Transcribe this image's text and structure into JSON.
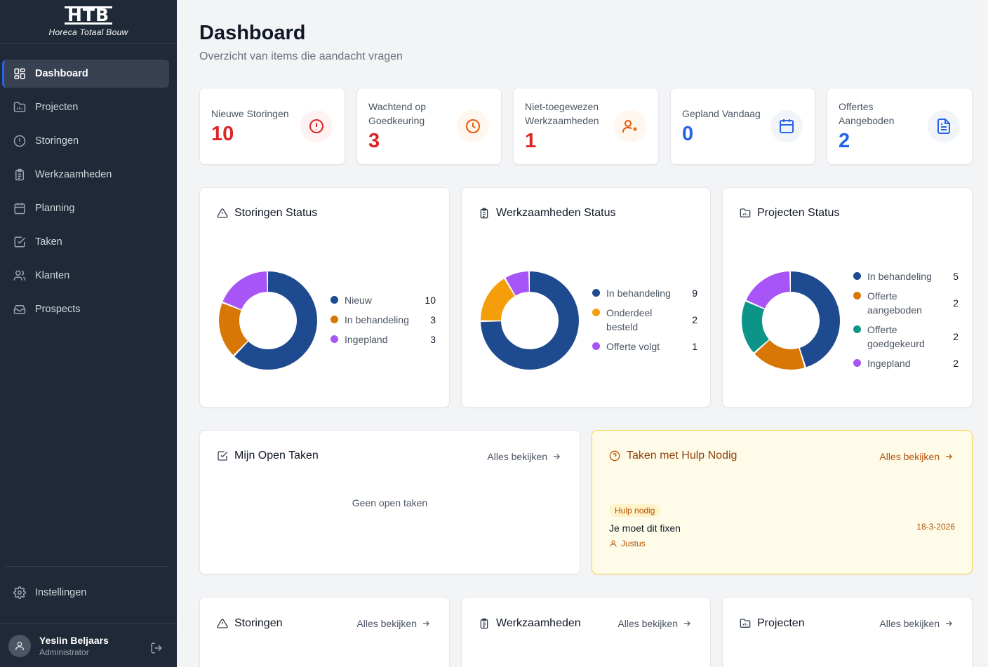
{
  "brand": {
    "logo_text": "HTB",
    "subtitle": "Horeca Totaal Bouw"
  },
  "sidebar": {
    "items": [
      {
        "label": "Dashboard",
        "icon": "dashboard-grid-icon"
      },
      {
        "label": "Projecten",
        "icon": "folder-chart-icon"
      },
      {
        "label": "Storingen",
        "icon": "alert-circle-icon"
      },
      {
        "label": "Werkzaamheden",
        "icon": "clipboard-icon"
      },
      {
        "label": "Planning",
        "icon": "calendar-icon"
      },
      {
        "label": "Taken",
        "icon": "check-square-icon"
      },
      {
        "label": "Klanten",
        "icon": "users-icon"
      },
      {
        "label": "Prospects",
        "icon": "inbox-icon"
      }
    ],
    "settings_label": "Instellingen",
    "user": {
      "name": "Yeslin Beljaars",
      "role": "Administrator"
    }
  },
  "header": {
    "title": "Dashboard",
    "subtitle": "Overzicht van items die aandacht vragen"
  },
  "stats": [
    {
      "label": "Nieuwe Storingen",
      "value": "10",
      "color": "#dc2626",
      "icon": "alert-circle-icon",
      "icon_bg": "#fef2f2"
    },
    {
      "label": "Wachtend op Goedkeuring",
      "value": "3",
      "color": "#dc2626",
      "icon": "clock-icon",
      "icon_bg": "#fff7ed"
    },
    {
      "label": "Niet-toegewezen Werkzaamheden",
      "value": "1",
      "color": "#dc2626",
      "icon": "user-x-icon",
      "icon_bg": "#fff7ed"
    },
    {
      "label": "Gepland Vandaag",
      "value": "0",
      "color": "#2563eb",
      "icon": "calendar-icon",
      "icon_bg": "#f1f5f9"
    },
    {
      "label": "Offertes Aangeboden",
      "value": "2",
      "color": "#2563eb",
      "icon": "file-text-icon",
      "icon_bg": "#f1f5f9"
    }
  ],
  "charts": {
    "storingen": {
      "title": "Storingen Status",
      "chart_data": {
        "type": "pie",
        "categories": [
          "Nieuw",
          "In behandeling",
          "Ingepland"
        ],
        "values": [
          10,
          3,
          3
        ],
        "colors": [
          "#1e4b8f",
          "#d97706",
          "#a855f7"
        ]
      }
    },
    "werkzaamheden": {
      "title": "Werkzaamheden Status",
      "chart_data": {
        "type": "pie",
        "categories": [
          "In behandeling",
          "Onderdeel besteld",
          "Offerte volgt"
        ],
        "values": [
          9,
          2,
          1
        ],
        "colors": [
          "#1e4b8f",
          "#f59e0b",
          "#a855f7"
        ]
      }
    },
    "projecten": {
      "title": "Projecten Status",
      "chart_data": {
        "type": "pie",
        "categories": [
          "In behandeling",
          "Offerte aangeboden",
          "Offerte goedgekeurd",
          "Ingepland"
        ],
        "values": [
          5,
          2,
          2,
          2
        ],
        "colors": [
          "#1e4b8f",
          "#d97706",
          "#0d9488",
          "#a855f7"
        ]
      }
    }
  },
  "open_tasks": {
    "title": "Mijn Open Taken",
    "view_all": "Alles bekijken",
    "empty": "Geen open taken"
  },
  "help_tasks": {
    "title": "Taken met Hulp Nodig",
    "view_all": "Alles bekijken",
    "item": {
      "badge": "Hulp nodig",
      "title": "Je moet dit fixen",
      "person": "Justus",
      "date": "18-3-2026"
    }
  },
  "bottom_cards": [
    {
      "title": "Storingen",
      "view_all": "Alles bekijken"
    },
    {
      "title": "Werkzaamheden",
      "view_all": "Alles bekijken"
    },
    {
      "title": "Projecten",
      "view_all": "Alles bekijken"
    }
  ]
}
